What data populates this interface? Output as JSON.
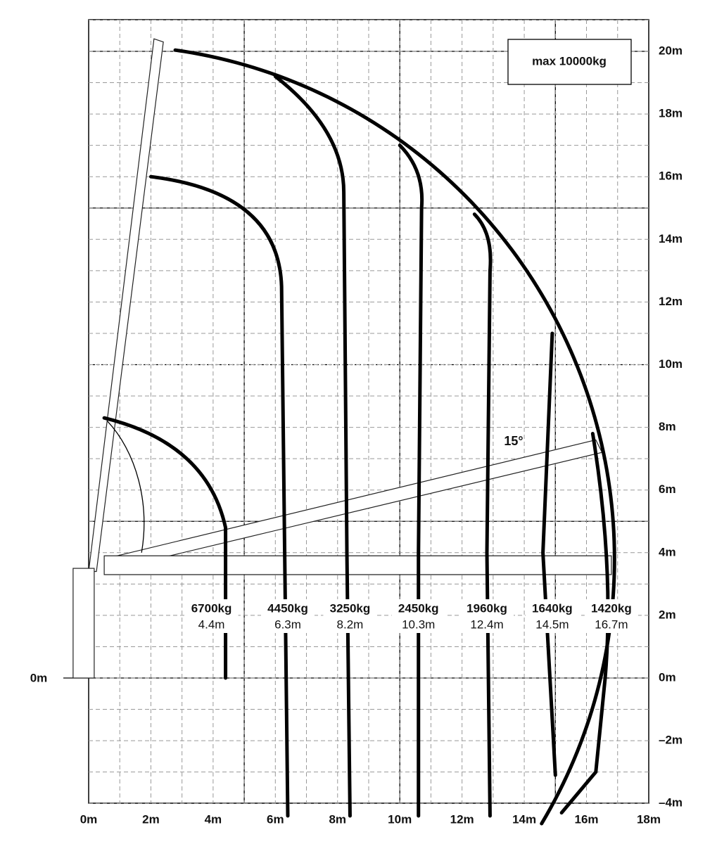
{
  "axes": {
    "x_ticks": [
      {
        "value": 0,
        "label": "0m"
      },
      {
        "value": 2,
        "label": "2m"
      },
      {
        "value": 4,
        "label": "4m"
      },
      {
        "value": 6,
        "label": "6m"
      },
      {
        "value": 8,
        "label": "8m"
      },
      {
        "value": 10,
        "label": "10m"
      },
      {
        "value": 12,
        "label": "12m"
      },
      {
        "value": 14,
        "label": "14m"
      },
      {
        "value": 16,
        "label": "16m"
      },
      {
        "value": 18,
        "label": "18m"
      }
    ],
    "y_ticks": [
      {
        "value": -4,
        "label": "–4m"
      },
      {
        "value": -2,
        "label": "–2m"
      },
      {
        "value": 0,
        "label": "0m"
      },
      {
        "value": 2,
        "label": "2m"
      },
      {
        "value": 4,
        "label": "4m"
      },
      {
        "value": 6,
        "label": "6m"
      },
      {
        "value": 8,
        "label": "8m"
      },
      {
        "value": 10,
        "label": "10m"
      },
      {
        "value": 12,
        "label": "12m"
      },
      {
        "value": 14,
        "label": "14m"
      },
      {
        "value": 16,
        "label": "16m"
      },
      {
        "value": 18,
        "label": "18m"
      },
      {
        "value": 20,
        "label": "20m"
      }
    ],
    "y_left_label": "0m"
  },
  "annotations": {
    "max_load": "max 10000kg",
    "angle": "15°"
  },
  "loads": [
    {
      "weight": "6700kg",
      "radius": "4.4m"
    },
    {
      "weight": "4450kg",
      "radius": "6.3m"
    },
    {
      "weight": "3250kg",
      "radius": "8.2m"
    },
    {
      "weight": "2450kg",
      "radius": "10.3m"
    },
    {
      "weight": "1960kg",
      "radius": "12.4m"
    },
    {
      "weight": "1640kg",
      "radius": "14.5m"
    },
    {
      "weight": "1420kg",
      "radius": "16.7m"
    }
  ]
}
